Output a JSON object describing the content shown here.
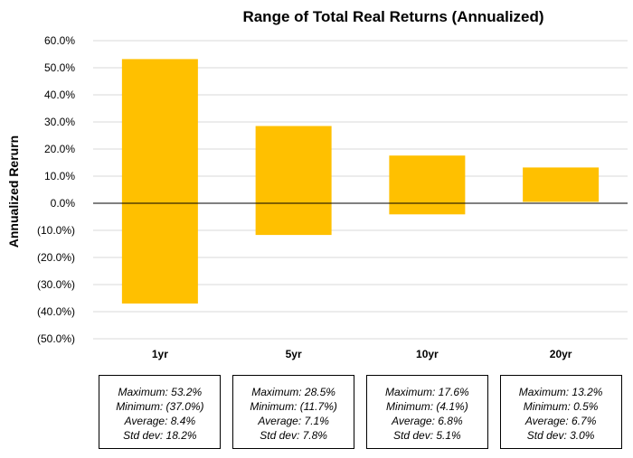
{
  "chart_data": {
    "type": "bar",
    "subtype": "floating-range",
    "title": "Range of Total Real Returns (Annualized)",
    "ylabel": "Annualized Rerurn",
    "xlabel": "",
    "ylim": [
      -50,
      60
    ],
    "y_ticks": [
      60,
      50,
      40,
      30,
      20,
      10,
      0,
      -10,
      -20,
      -30,
      -40,
      -50
    ],
    "y_tick_labels": [
      "60.0%",
      "50.0%",
      "40.0%",
      "30.0%",
      "20.0%",
      "10.0%",
      "0.0%",
      "(10.0%)",
      "(20.0%)",
      "(30.0%)",
      "(40.0%)",
      "(50.0%)"
    ],
    "categories": [
      "1yr",
      "5yr",
      "10yr",
      "20yr"
    ],
    "series": [
      {
        "maximum": [
          53.2,
          28.5,
          17.6,
          13.2
        ],
        "minimum": [
          -37.0,
          -11.7,
          -4.1,
          0.5
        ]
      }
    ],
    "bar_color": "#ffc000",
    "grid": "horizontal",
    "stats": [
      {
        "max": "Maximum: 53.2%",
        "min": "Minimum: (37.0%)",
        "avg": "Average: 8.4%",
        "std": "Std dev: 18.2%"
      },
      {
        "max": "Maximum: 28.5%",
        "min": "Minimum: (11.7%)",
        "avg": "Average: 7.1%",
        "std": "Std dev: 7.8%"
      },
      {
        "max": "Maximum: 17.6%",
        "min": "Minimum: (4.1%)",
        "avg": "Average: 6.8%",
        "std": "Std dev: 5.1%"
      },
      {
        "max": "Maximum: 13.2%",
        "min": "Minimum: 0.5%",
        "avg": "Average: 6.7%",
        "std": "Std dev: 3.0%"
      }
    ]
  }
}
